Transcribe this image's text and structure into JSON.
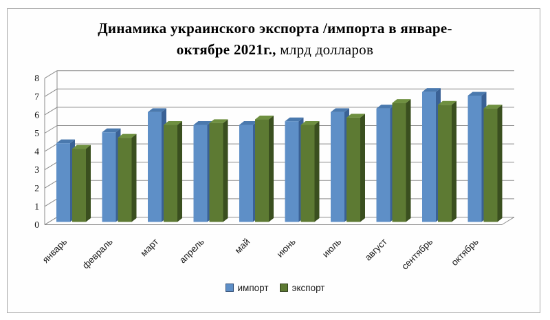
{
  "header": {
    "line1": "Динамика украинского экспорта /импорта в январе-",
    "line2_bold": "октябре 2021г.,",
    "line2_regular": " млрд долларов"
  },
  "colors": {
    "grid": "#8a8a8a",
    "axis": "#8a8a8a",
    "tick_text": "#111111",
    "category_text": "#1a1a1a",
    "title_text": "#000000",
    "frame_border": "#a8a8a8",
    "background": "#ffffff"
  },
  "chart_data": {
    "type": "bar",
    "style": "3d-clustered",
    "title": "Динамика украинского экспорта /импорта в январе-октябре 2021г., млрд долларов",
    "xlabel": "",
    "ylabel": "",
    "ylim": [
      0,
      8
    ],
    "yticks": [
      0,
      1,
      2,
      3,
      4,
      5,
      6,
      7,
      8
    ],
    "grid": true,
    "legend_position": "bottom",
    "categories": [
      "январь",
      "февраль",
      "март",
      "апрель",
      "май",
      "июнь",
      "июль",
      "август",
      "сентябрь",
      "октябрь"
    ],
    "series": [
      {
        "name": "импорт",
        "values": [
          4.3,
          4.9,
          6.0,
          5.3,
          5.3,
          5.5,
          6.0,
          6.2,
          7.1,
          6.9
        ],
        "colors": {
          "front": "#5E8FC7",
          "top": "#4A79AE",
          "side": "#3A6195",
          "border": "#2F4D75"
        }
      },
      {
        "name": "экспорт",
        "values": [
          4.0,
          4.6,
          5.3,
          5.4,
          5.6,
          5.3,
          5.7,
          6.5,
          6.4,
          6.2
        ],
        "colors": {
          "front": "#5D7A33",
          "top": "#6F9040",
          "side": "#3A4F1F",
          "border": "#2E3D18"
        }
      }
    ]
  }
}
